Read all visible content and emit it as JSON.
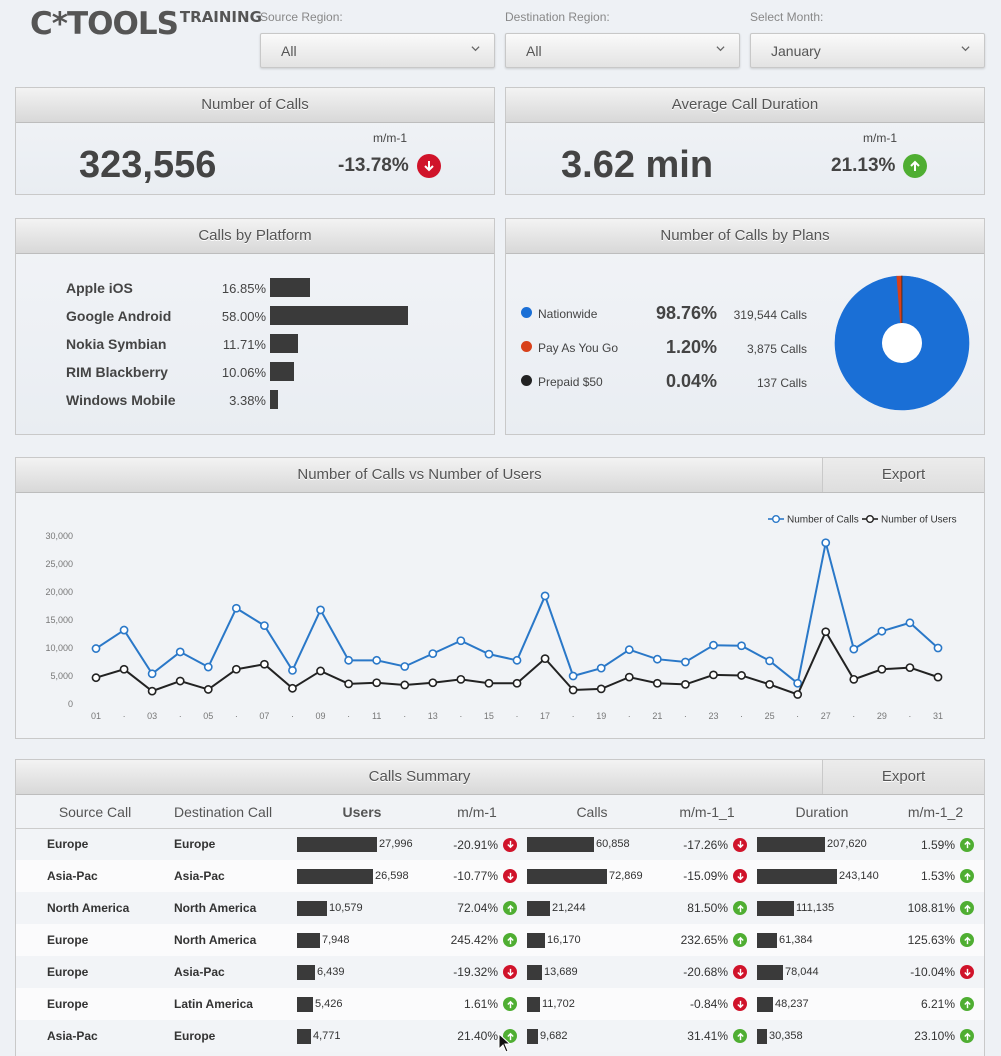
{
  "logo": {
    "main": "C*TOOLS",
    "sub": "TRAINING"
  },
  "filters": [
    {
      "label": "Source Region:",
      "value": "All"
    },
    {
      "label": "Destination Region:",
      "value": "All"
    },
    {
      "label": "Select Month:",
      "value": "January"
    }
  ],
  "kpis": {
    "calls": {
      "title": "Number of Calls",
      "value": "323,556",
      "mm_label": "m/m-1",
      "mm_value": "-13.78%",
      "direction": "down"
    },
    "duration": {
      "title": "Average Call Duration",
      "value": "3.62 min",
      "mm_label": "m/m-1",
      "mm_value": "21.13%",
      "direction": "up"
    }
  },
  "platform": {
    "title": "Calls by Platform",
    "items": [
      {
        "name": "Apple iOS",
        "pct": "16.85%",
        "share": 16.85
      },
      {
        "name": "Google Android",
        "pct": "58.00%",
        "share": 58.0
      },
      {
        "name": "Nokia Symbian",
        "pct": "11.71%",
        "share": 11.71
      },
      {
        "name": "RIM Blackberry",
        "pct": "10.06%",
        "share": 10.06
      },
      {
        "name": "Windows Mobile",
        "pct": "3.38%",
        "share": 3.38
      }
    ]
  },
  "plans": {
    "title": "Number of Calls by Plans",
    "items": [
      {
        "name": "Nationwide",
        "pct": "98.76%",
        "calls": "319,544 Calls",
        "share": 98.76,
        "color": "#1a6fd6"
      },
      {
        "name": "Pay As You Go",
        "pct": "1.20%",
        "calls": "3,875 Calls",
        "share": 1.2,
        "color": "#d8411a"
      },
      {
        "name": "Prepaid $50",
        "pct": "0.04%",
        "calls": "137 Calls",
        "share": 0.04,
        "color": "#222222"
      }
    ]
  },
  "line_chart": {
    "title": "Number of Calls vs Number of Users",
    "export_label": "Export"
  },
  "chart_data": {
    "type": "line",
    "x": [
      "01",
      "02",
      "03",
      "04",
      "05",
      "06",
      "07",
      "08",
      "09",
      "10",
      "11",
      "12",
      "13",
      "14",
      "15",
      "16",
      "17",
      "18",
      "19",
      "20",
      "21",
      "22",
      "23",
      "24",
      "25",
      "26",
      "27",
      "28",
      "29",
      "30",
      "31"
    ],
    "x_tick_labels": [
      "01",
      "·",
      "03",
      "·",
      "05",
      "·",
      "07",
      "·",
      "09",
      "·",
      "11",
      "·",
      "13",
      "·",
      "15",
      "·",
      "17",
      "·",
      "19",
      "·",
      "21",
      "·",
      "23",
      "·",
      "25",
      "·",
      "27",
      "·",
      "29",
      "·",
      "31"
    ],
    "ylim": [
      0,
      30000
    ],
    "y_ticks": [
      "0",
      "5,000",
      "10,000",
      "15,000",
      "20,000",
      "25,000",
      "30,000"
    ],
    "y_tick_values": [
      0,
      5000,
      10000,
      15000,
      20000,
      25000,
      30000
    ],
    "legend_position": "top-right",
    "series": [
      {
        "name": "Number of Calls",
        "color": "#2a78c8",
        "values": [
          9900,
          13200,
          5400,
          9300,
          6600,
          17100,
          14000,
          6000,
          16800,
          7800,
          7800,
          6700,
          9000,
          11300,
          8900,
          7800,
          19300,
          5000,
          6400,
          9700,
          8000,
          7500,
          10500,
          10400,
          7700,
          3700,
          28800,
          9800,
          13000,
          14500,
          10000
        ]
      },
      {
        "name": "Number of Users",
        "color": "#222222",
        "values": [
          4700,
          6200,
          2300,
          4100,
          2600,
          6200,
          7100,
          2800,
          5900,
          3600,
          3800,
          3400,
          3800,
          4400,
          3700,
          3700,
          8100,
          2500,
          2700,
          4800,
          3700,
          3500,
          5200,
          5100,
          3500,
          1700,
          12900,
          4400,
          6200,
          6500,
          4800
        ]
      }
    ]
  },
  "summary": {
    "title": "Calls Summary",
    "export_label": "Export",
    "headers": [
      "Source Call",
      "Destination Call",
      "Users",
      "m/m-1",
      "Calls",
      "m/m-1_1",
      "Duration",
      "m/m-1_2"
    ],
    "rows": [
      {
        "src": "Europe",
        "dst": "Europe",
        "users": "27,996",
        "users_n": 27996,
        "mm1": "-20.91%",
        "mm1_dir": "down",
        "calls": "60,858",
        "calls_n": 60858,
        "mm2": "-17.26%",
        "mm2_dir": "down",
        "dur": "207,620",
        "dur_n": 207620,
        "mm3": "1.59%",
        "mm3_dir": "up"
      },
      {
        "src": "Asia-Pac",
        "dst": "Asia-Pac",
        "users": "26,598",
        "users_n": 26598,
        "mm1": "-10.77%",
        "mm1_dir": "down",
        "calls": "72,869",
        "calls_n": 72869,
        "mm2": "-15.09%",
        "mm2_dir": "down",
        "dur": "243,140",
        "dur_n": 243140,
        "mm3": "1.53%",
        "mm3_dir": "up"
      },
      {
        "src": "North America",
        "dst": "North America",
        "users": "10,579",
        "users_n": 10579,
        "mm1": "72.04%",
        "mm1_dir": "up",
        "calls": "21,244",
        "calls_n": 21244,
        "mm2": "81.50%",
        "mm2_dir": "up",
        "dur": "111,135",
        "dur_n": 111135,
        "mm3": "108.81%",
        "mm3_dir": "up"
      },
      {
        "src": "Europe",
        "dst": "North America",
        "users": "7,948",
        "users_n": 7948,
        "mm1": "245.42%",
        "mm1_dir": "up",
        "calls": "16,170",
        "calls_n": 16170,
        "mm2": "232.65%",
        "mm2_dir": "up",
        "dur": "61,384",
        "dur_n": 61384,
        "mm3": "125.63%",
        "mm3_dir": "up"
      },
      {
        "src": "Europe",
        "dst": "Asia-Pac",
        "users": "6,439",
        "users_n": 6439,
        "mm1": "-19.32%",
        "mm1_dir": "down",
        "calls": "13,689",
        "calls_n": 13689,
        "mm2": "-20.68%",
        "mm2_dir": "down",
        "dur": "78,044",
        "dur_n": 78044,
        "mm3": "-10.04%",
        "mm3_dir": "down"
      },
      {
        "src": "Europe",
        "dst": "Latin America",
        "users": "5,426",
        "users_n": 5426,
        "mm1": "1.61%",
        "mm1_dir": "up",
        "calls": "11,702",
        "calls_n": 11702,
        "mm2": "-0.84%",
        "mm2_dir": "down",
        "dur": "48,237",
        "dur_n": 48237,
        "mm3": "6.21%",
        "mm3_dir": "up"
      },
      {
        "src": "Asia-Pac",
        "dst": "Europe",
        "users": "4,771",
        "users_n": 4771,
        "mm1": "21.40%",
        "mm1_dir": "up",
        "calls": "9,682",
        "calls_n": 9682,
        "mm2": "31.41%",
        "mm2_dir": "up",
        "dur": "30,358",
        "dur_n": 30358,
        "mm3": "23.10%",
        "mm3_dir": "up"
      }
    ]
  },
  "colors": {
    "down": "#d0132a",
    "up": "#4fae32",
    "bar": "#3a3a3a"
  }
}
